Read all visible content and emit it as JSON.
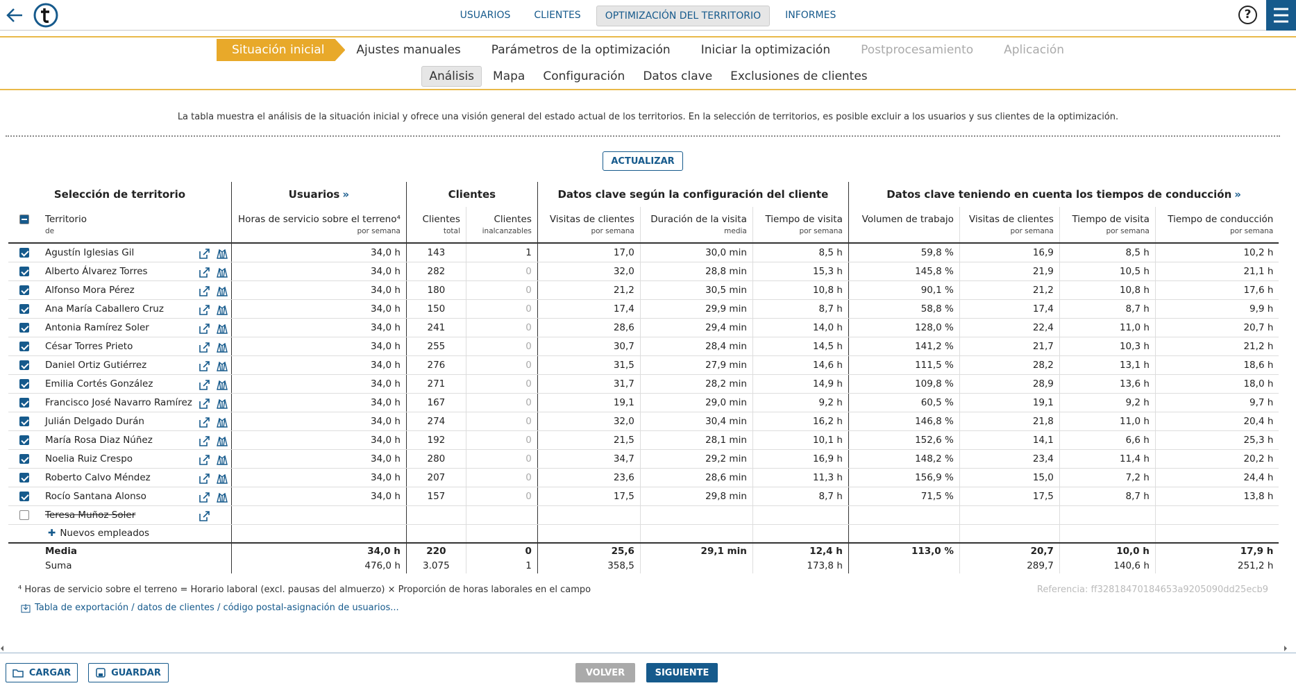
{
  "nav": {
    "items": [
      "USUARIOS",
      "CLIENTES",
      "OPTIMIZACIÓN DEL TERRITORIO",
      "INFORMES"
    ],
    "active": 2,
    "help": "?"
  },
  "steps": {
    "items": [
      "Situación inicial",
      "Ajustes manuales",
      "Parámetros de la optimización",
      "Iniciar la optimización",
      "Postprocesamiento",
      "Aplicación"
    ],
    "active": 0,
    "disabled": [
      4,
      5
    ]
  },
  "subtabs": {
    "items": [
      "Análisis",
      "Mapa",
      "Configuración",
      "Datos clave",
      "Exclusiones de clientes"
    ],
    "active": 0
  },
  "description": "La tabla muestra el análisis de la situación inicial y ofrece una visión general del estado actual de los territorios. En la selección de territorios, es posible excluir a los usuarios y sus clientes de la optimización.",
  "update_button": "ACTUALIZAR",
  "table": {
    "groups": [
      {
        "title": "Selección de territorio"
      },
      {
        "title": "Usuarios",
        "more": "»"
      },
      {
        "title": "Clientes"
      },
      {
        "title": "Datos clave según la configuración del cliente"
      },
      {
        "title": "Datos clave teniendo en cuenta los tiempos de conducción",
        "more": "»"
      }
    ],
    "columns": [
      {
        "label": "Territorio",
        "sublabel": "de"
      },
      {
        "label": "Horas de servicio sobre el terreno⁴",
        "sublabel": "por semana"
      },
      {
        "label": "Clientes",
        "sublabel": "total"
      },
      {
        "label": "Clientes",
        "sublabel": "inalcanzables"
      },
      {
        "label": "Visitas de clientes",
        "sublabel": "por semana"
      },
      {
        "label": "Duración de la visita",
        "sublabel": "media"
      },
      {
        "label": "Tiempo de visita",
        "sublabel": "por semana"
      },
      {
        "label": "Volumen de trabajo"
      },
      {
        "label": "Visitas de clientes",
        "sublabel": "por semana"
      },
      {
        "label": "Tiempo de visita",
        "sublabel": "por semana"
      },
      {
        "label": "Tiempo de conducción",
        "sublabel": "por semana"
      }
    ],
    "rows": [
      {
        "name": "Agustín Iglesias Gil",
        "checked": true,
        "cells": [
          "34,0 h",
          "143",
          "1",
          "17,0",
          "30,0 min",
          "8,5 h",
          "59,8 %",
          "16,9",
          "8,5 h",
          "10,2 h"
        ]
      },
      {
        "name": "Alberto Álvarez Torres",
        "checked": true,
        "cells": [
          "34,0 h",
          "282",
          "0",
          "32,0",
          "28,8 min",
          "15,3 h",
          "145,8 %",
          "21,9",
          "10,5 h",
          "21,1 h"
        ]
      },
      {
        "name": "Alfonso Mora Pérez",
        "checked": true,
        "cells": [
          "34,0 h",
          "180",
          "0",
          "21,2",
          "30,5 min",
          "10,8 h",
          "90,1 %",
          "21,2",
          "10,8 h",
          "17,6 h"
        ]
      },
      {
        "name": "Ana María Caballero Cruz",
        "checked": true,
        "cells": [
          "34,0 h",
          "150",
          "0",
          "17,4",
          "29,9 min",
          "8,7 h",
          "58,8 %",
          "17,4",
          "8,7 h",
          "9,9 h"
        ]
      },
      {
        "name": "Antonia Ramírez Soler",
        "checked": true,
        "cells": [
          "34,0 h",
          "241",
          "0",
          "28,6",
          "29,4 min",
          "14,0 h",
          "128,0 %",
          "22,4",
          "11,0 h",
          "20,7 h"
        ]
      },
      {
        "name": "César Torres Prieto",
        "checked": true,
        "cells": [
          "34,0 h",
          "255",
          "0",
          "30,7",
          "28,4 min",
          "14,5 h",
          "141,2 %",
          "21,7",
          "10,3 h",
          "21,2 h"
        ]
      },
      {
        "name": "Daniel Ortiz Gutiérrez",
        "checked": true,
        "cells": [
          "34,0 h",
          "276",
          "0",
          "31,5",
          "27,9 min",
          "14,6 h",
          "111,5 %",
          "28,2",
          "13,1 h",
          "18,6 h"
        ]
      },
      {
        "name": "Emilia Cortés González",
        "checked": true,
        "cells": [
          "34,0 h",
          "271",
          "0",
          "31,7",
          "28,2 min",
          "14,9 h",
          "109,8 %",
          "28,9",
          "13,6 h",
          "18,0 h"
        ]
      },
      {
        "name": "Francisco José Navarro Ramírez",
        "checked": true,
        "cells": [
          "34,0 h",
          "167",
          "0",
          "19,1",
          "29,0 min",
          "9,2 h",
          "60,5 %",
          "19,1",
          "9,2 h",
          "9,7 h"
        ]
      },
      {
        "name": "Julián Delgado Durán",
        "checked": true,
        "cells": [
          "34,0 h",
          "274",
          "0",
          "32,0",
          "30,4 min",
          "16,2 h",
          "146,8 %",
          "21,8",
          "11,0 h",
          "20,4 h"
        ]
      },
      {
        "name": "María Rosa Diaz Núñez",
        "checked": true,
        "cells": [
          "34,0 h",
          "192",
          "0",
          "21,5",
          "28,1 min",
          "10,1 h",
          "152,6 %",
          "14,1",
          "6,6 h",
          "25,3 h"
        ]
      },
      {
        "name": "Noelia Ruiz Crespo",
        "checked": true,
        "cells": [
          "34,0 h",
          "280",
          "0",
          "34,7",
          "29,2 min",
          "16,9 h",
          "148,2 %",
          "23,4",
          "11,4 h",
          "20,2 h"
        ]
      },
      {
        "name": "Roberto Calvo Méndez",
        "checked": true,
        "cells": [
          "34,0 h",
          "207",
          "0",
          "23,6",
          "28,6 min",
          "11,3 h",
          "156,9 %",
          "15,0",
          "7,2 h",
          "24,4 h"
        ]
      },
      {
        "name": "Rocío Santana Alonso",
        "checked": true,
        "cells": [
          "34,0 h",
          "157",
          "0",
          "17,5",
          "29,8 min",
          "8,7 h",
          "71,5 %",
          "17,5",
          "8,7 h",
          "13,8 h"
        ]
      },
      {
        "name": "Teresa Muñoz Soler",
        "checked": false
      }
    ],
    "new_employees": "Nuevos empleados",
    "totals": [
      {
        "label": "Media",
        "cells": [
          "34,0 h",
          "220",
          "0",
          "25,6",
          "29,1 min",
          "12,4 h",
          "113,0 %",
          "20,7",
          "10,0 h",
          "17,9 h"
        ]
      },
      {
        "label": "Suma",
        "cells": [
          "476,0 h",
          "3.075",
          "1",
          "358,5",
          null,
          "173,8 h",
          null,
          "289,7",
          "140,6 h",
          "251,2 h"
        ]
      }
    ]
  },
  "footnote": "⁴ Horas de servicio sobre el terreno = Horario laboral (excl. pausas del almuerzo) × Proporción de horas laborales en el campo",
  "reference": "Referencia: ff32818470184653a9205090dd25ecb9",
  "export_link": "Tabla de exportación / datos de clientes / código postal-asignación de usuarios...",
  "footer": {
    "load": "CARGAR",
    "save": "GUARDAR",
    "back": "VOLVER",
    "next": "SIGUIENTE"
  }
}
